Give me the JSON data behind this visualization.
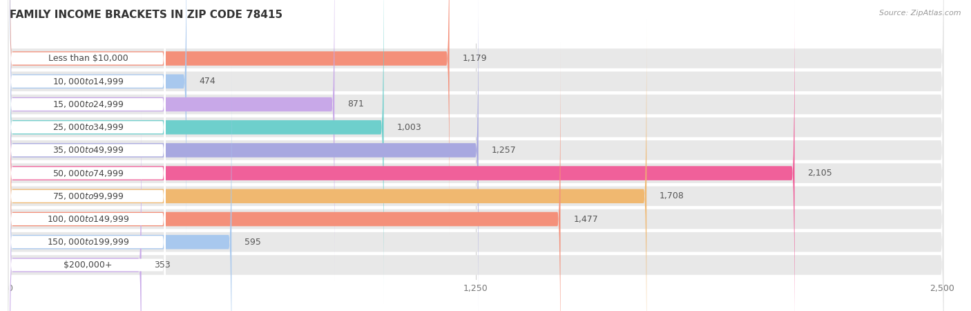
{
  "title": "FAMILY INCOME BRACKETS IN ZIP CODE 78415",
  "source": "Source: ZipAtlas.com",
  "categories": [
    "Less than $10,000",
    "$10,000 to $14,999",
    "$15,000 to $24,999",
    "$25,000 to $34,999",
    "$35,000 to $49,999",
    "$50,000 to $74,999",
    "$75,000 to $99,999",
    "$100,000 to $149,999",
    "$150,000 to $199,999",
    "$200,000+"
  ],
  "values": [
    1179,
    474,
    871,
    1003,
    1257,
    2105,
    1708,
    1477,
    595,
    353
  ],
  "colors": [
    "#F4907A",
    "#A8C8EE",
    "#C8A8E8",
    "#6ECFCC",
    "#A8A8E0",
    "#F0609A",
    "#F0B870",
    "#F4907A",
    "#A8C8EE",
    "#C8A8E8"
  ],
  "xlim": [
    0,
    2500
  ],
  "xticks": [
    0,
    1250,
    2500
  ],
  "bar_bg_color": "#e8e8e8",
  "row_bg_color": "#f7f7f7",
  "white_label_bg": "#ffffff",
  "title_fontsize": 11,
  "label_fontsize": 9,
  "value_fontsize": 9
}
